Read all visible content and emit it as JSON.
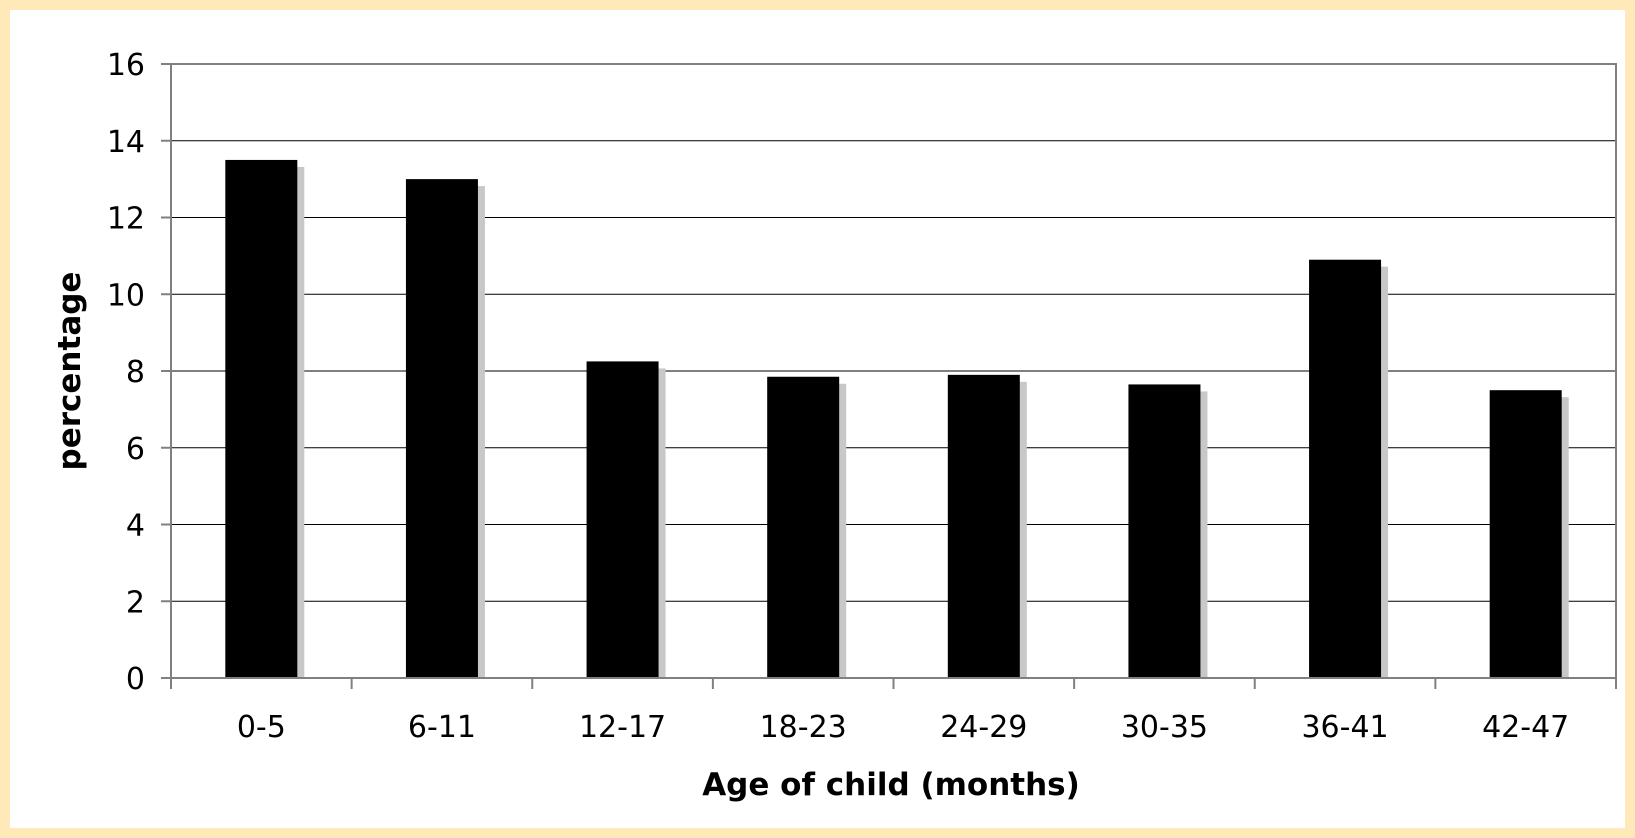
{
  "chart_data": {
    "type": "bar",
    "title": "",
    "xlabel": "Age of child (months)",
    "ylabel": "percentage",
    "categories": [
      "0-5",
      "6-11",
      "12-17",
      "18-23",
      "24-29",
      "30-35",
      "36-41",
      "42-47"
    ],
    "values": [
      13.5,
      13.0,
      8.25,
      7.85,
      7.9,
      7.65,
      10.9,
      7.5
    ],
    "ylim": [
      0,
      16
    ],
    "yticks": [
      0,
      2,
      4,
      6,
      8,
      10,
      12,
      14,
      16
    ],
    "grid": true,
    "legend": "none",
    "colors": {
      "bar": "#000000",
      "shadow": "#C8C8C8",
      "frame": "#FFE9B9",
      "grid": "#000000",
      "plot_border": "#808080"
    }
  }
}
